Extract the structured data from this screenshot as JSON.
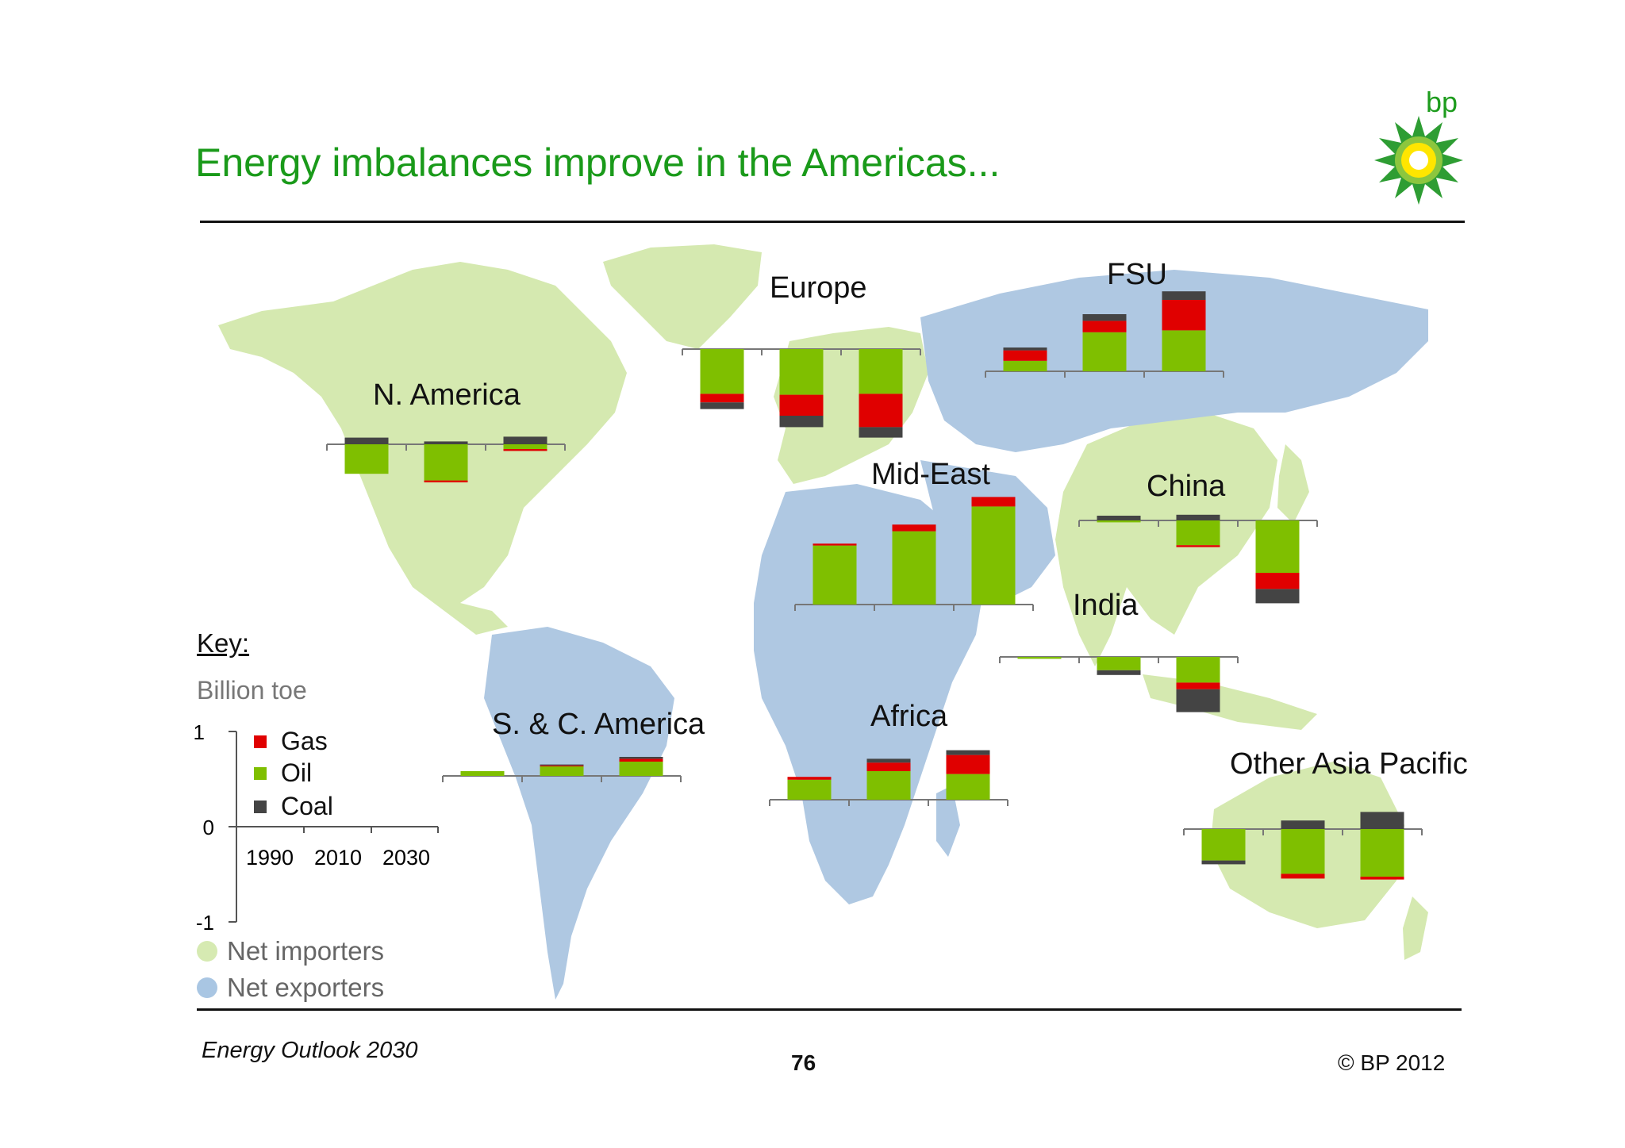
{
  "slide": {
    "title": "Energy imbalances improve in the Americas...",
    "logo_text": "bp",
    "footer_left": "Energy Outlook 2030",
    "page_number": "76",
    "footer_right": "© BP 2012"
  },
  "key": {
    "title": "Key:",
    "unit": "Billion toe",
    "y_ticks": [
      "1",
      "0",
      "-1"
    ],
    "x_ticks": [
      "1990",
      "2010",
      "2030"
    ],
    "legend": [
      {
        "name": "Gas",
        "color": "#e00000"
      },
      {
        "name": "Oil",
        "color": "#7fbf00"
      },
      {
        "name": "Coal",
        "color": "#444444"
      }
    ],
    "region_types": [
      {
        "label": "Net importers",
        "color": "#d6eab2"
      },
      {
        "label": "Net exporters",
        "color": "#a9c6e3"
      }
    ]
  },
  "colors": {
    "importer_land": "#d5e9b0",
    "exporter_land": "#afc8e2",
    "title_green": "#1a9a1a"
  },
  "chart_data": {
    "type": "bar",
    "stacked": true,
    "unit": "Billion toe",
    "categories": [
      "1990",
      "2010",
      "2030"
    ],
    "ylim": [
      -1,
      1
    ],
    "series_names": [
      "Oil",
      "Gas",
      "Coal"
    ],
    "regions": [
      {
        "name": "N. America",
        "values": {
          "Oil": [
            -0.31,
            -0.38,
            -0.05
          ],
          "Gas": [
            0.0,
            -0.02,
            -0.02
          ],
          "Coal": [
            0.07,
            0.03,
            0.08
          ]
        }
      },
      {
        "name": "Europe",
        "values": {
          "Oil": [
            -0.47,
            -0.48,
            -0.47
          ],
          "Gas": [
            -0.09,
            -0.22,
            -0.35
          ],
          "Coal": [
            -0.07,
            -0.12,
            -0.11
          ]
        }
      },
      {
        "name": "FSU",
        "values": {
          "Oil": [
            0.11,
            0.41,
            0.43
          ],
          "Gas": [
            0.11,
            0.12,
            0.32
          ],
          "Coal": [
            0.03,
            0.07,
            0.09
          ]
        }
      },
      {
        "name": "Mid-East",
        "values": {
          "Oil": [
            0.62,
            0.77,
            1.03
          ],
          "Gas": [
            0.02,
            0.07,
            0.1
          ],
          "Coal": [
            0.0,
            0.0,
            0.0
          ]
        }
      },
      {
        "name": "China",
        "values": {
          "Oil": [
            -0.02,
            -0.26,
            -0.55
          ],
          "Gas": [
            0.0,
            -0.02,
            -0.17
          ],
          "Coal": [
            0.05,
            0.06,
            -0.15
          ]
        }
      },
      {
        "name": "India",
        "values": {
          "Oil": [
            -0.02,
            -0.14,
            -0.27
          ],
          "Gas": [
            0.0,
            0.0,
            -0.07
          ],
          "Coal": [
            0.0,
            -0.05,
            -0.24
          ]
        }
      },
      {
        "name": "S. & C. America",
        "values": {
          "Oil": [
            0.05,
            0.1,
            0.15
          ],
          "Gas": [
            0.0,
            0.01,
            0.03
          ],
          "Coal": [
            0.0,
            0.01,
            0.02
          ]
        }
      },
      {
        "name": "Africa",
        "values": {
          "Oil": [
            0.21,
            0.3,
            0.27
          ],
          "Gas": [
            0.03,
            0.09,
            0.2
          ],
          "Coal": [
            0.0,
            0.04,
            0.05
          ]
        }
      },
      {
        "name": "Other Asia Pacific",
        "values": {
          "Oil": [
            -0.33,
            -0.47,
            -0.5
          ],
          "Gas": [
            0.0,
            -0.05,
            -0.03
          ],
          "Coal": [
            -0.04,
            0.09,
            0.18
          ]
        }
      }
    ]
  }
}
